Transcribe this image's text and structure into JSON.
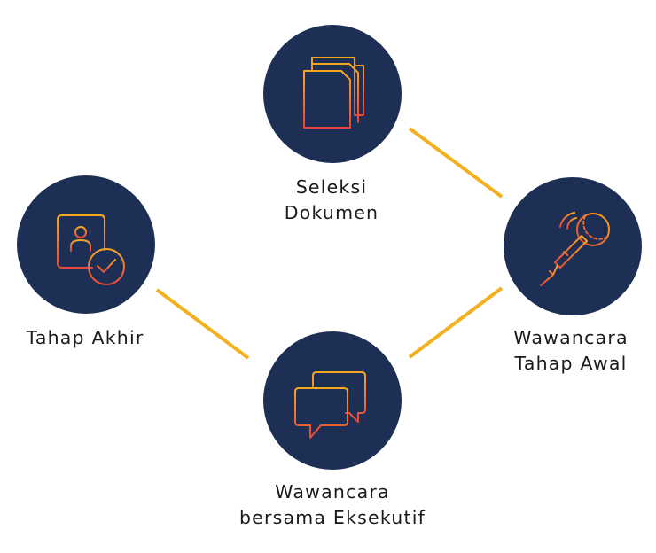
{
  "colors": {
    "node_fill": "#1E2F55",
    "connector": "#F3B11F",
    "icon_gradient_top": "#F7A823",
    "icon_gradient_bottom": "#E8463A",
    "label_text": "#1a1a1a"
  },
  "nodes": [
    {
      "id": "seleksi-dokumen",
      "icon": "document-icon",
      "label_lines": [
        "Seleksi",
        "Dokumen"
      ]
    },
    {
      "id": "wawancara-tahap-awal",
      "icon": "microphone-icon",
      "label_lines": [
        "Wawancara",
        "Tahap Awal"
      ]
    },
    {
      "id": "wawancara-bersama-eksekutif",
      "icon": "chat-bubbles-icon",
      "label_lines": [
        "Wawancara",
        "bersama Eksekutif"
      ]
    },
    {
      "id": "tahap-akhir",
      "icon": "profile-check-icon",
      "label_lines": [
        "Tahap Akhir"
      ]
    }
  ]
}
